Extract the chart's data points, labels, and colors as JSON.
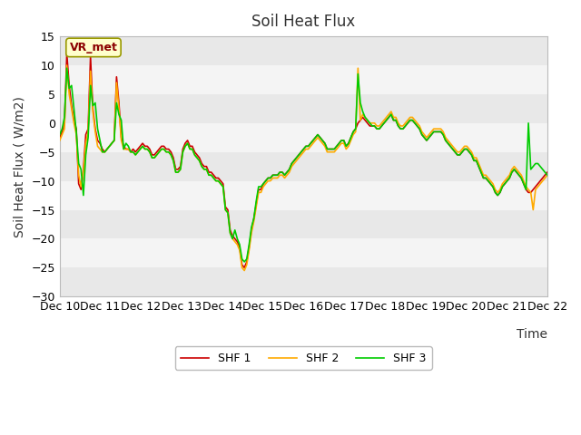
{
  "title": "Soil Heat Flux",
  "xlabel": "Time",
  "ylabel": "Soil Heat Flux ( W/m2)",
  "ylim": [
    -30,
    15
  ],
  "yticks": [
    -30,
    -25,
    -20,
    -15,
    -10,
    -5,
    0,
    5,
    10,
    15
  ],
  "xtick_labels": [
    "Dec 10",
    "Dec 11",
    "Dec 12",
    "Dec 13",
    "Dec 14",
    "Dec 15",
    "Dec 16",
    "Dec 17",
    "Dec 18",
    "Dec 19",
    "Dec 20",
    "Dec 21",
    "Dec 22"
  ],
  "legend_labels": [
    "SHF 1",
    "SHF 2",
    "SHF 3"
  ],
  "line_colors": [
    "#cc0000",
    "#ffaa00",
    "#00cc00"
  ],
  "vr_met_label": "VR_met",
  "title_fontsize": 12,
  "label_fontsize": 10,
  "tick_fontsize": 9,
  "band_colors": [
    "#f0f0f0",
    "#e0e0e0"
  ],
  "shf1": [
    -2.5,
    -1.5,
    0.0,
    12.0,
    6.5,
    3.0,
    0.5,
    -1.0,
    -10.5,
    -11.5,
    -8.0,
    -2.0,
    -1.0,
    11.5,
    2.5,
    -1.0,
    -3.0,
    -3.5,
    -4.5,
    -5.0,
    -4.5,
    -4.0,
    -3.5,
    -3.0,
    8.0,
    3.5,
    -2.5,
    -4.0,
    -4.5,
    -4.5,
    -5.0,
    -4.5,
    -5.0,
    -4.5,
    -4.0,
    -3.5,
    -4.0,
    -4.0,
    -4.5,
    -5.5,
    -5.5,
    -5.0,
    -4.5,
    -4.0,
    -4.0,
    -4.5,
    -4.5,
    -5.0,
    -6.0,
    -8.0,
    -8.0,
    -7.5,
    -4.5,
    -3.5,
    -3.0,
    -4.0,
    -4.0,
    -5.0,
    -5.5,
    -6.0,
    -7.0,
    -7.5,
    -7.5,
    -8.5,
    -8.5,
    -9.0,
    -9.5,
    -9.5,
    -10.0,
    -10.5,
    -14.5,
    -15.0,
    -18.5,
    -19.5,
    -20.0,
    -20.5,
    -21.5,
    -24.5,
    -25.0,
    -24.0,
    -21.5,
    -18.5,
    -16.5,
    -14.0,
    -11.5,
    -11.5,
    -10.5,
    -10.0,
    -9.5,
    -9.5,
    -9.0,
    -9.0,
    -9.0,
    -8.5,
    -8.5,
    -9.0,
    -8.5,
    -8.0,
    -7.0,
    -6.5,
    -6.0,
    -5.5,
    -5.0,
    -4.5,
    -4.0,
    -4.0,
    -3.5,
    -3.0,
    -2.5,
    -2.0,
    -2.5,
    -3.0,
    -3.5,
    -4.5,
    -4.5,
    -4.5,
    -4.5,
    -4.0,
    -3.5,
    -3.0,
    -3.0,
    -4.0,
    -3.5,
    -2.5,
    -1.5,
    -1.0,
    0.0,
    0.5,
    1.0,
    0.5,
    0.0,
    -0.5,
    -0.5,
    -0.5,
    -1.0,
    -1.0,
    -0.5,
    0.0,
    0.5,
    1.0,
    1.5,
    0.5,
    0.5,
    -0.5,
    -1.0,
    -1.0,
    -0.5,
    0.0,
    0.5,
    0.5,
    0.0,
    -0.5,
    -1.0,
    -2.0,
    -2.5,
    -3.0,
    -2.5,
    -2.0,
    -1.5,
    -1.5,
    -1.5,
    -1.5,
    -2.0,
    -3.0,
    -3.5,
    -4.0,
    -4.5,
    -5.0,
    -5.5,
    -5.5,
    -5.0,
    -4.5,
    -4.5,
    -5.0,
    -5.5,
    -6.5,
    -6.5,
    -7.5,
    -8.5,
    -9.5,
    -9.5,
    -10.0,
    -10.5,
    -11.0,
    -12.0,
    -12.5,
    -12.0,
    -11.0,
    -10.5,
    -10.0,
    -9.5,
    -8.5,
    -8.0,
    -8.5,
    -9.0,
    -9.5,
    -10.5,
    -11.5,
    -12.0,
    -12.0,
    -11.5,
    -11.0,
    -10.5,
    -10.0,
    -9.5,
    -9.0,
    -8.5
  ],
  "shf2": [
    -3.0,
    -2.0,
    -1.0,
    10.0,
    5.0,
    2.5,
    0.0,
    -2.0,
    -9.0,
    -11.0,
    -8.5,
    -3.5,
    -1.5,
    9.0,
    2.0,
    -1.5,
    -4.0,
    -4.5,
    -5.0,
    -5.0,
    -4.5,
    -4.0,
    -3.5,
    -3.0,
    7.0,
    2.5,
    -3.0,
    -4.5,
    -4.5,
    -4.5,
    -5.0,
    -5.0,
    -5.5,
    -5.0,
    -4.5,
    -4.0,
    -4.5,
    -4.5,
    -5.0,
    -6.0,
    -6.0,
    -5.5,
    -5.0,
    -4.5,
    -4.5,
    -5.0,
    -5.0,
    -5.5,
    -6.5,
    -8.5,
    -8.5,
    -8.0,
    -5.0,
    -4.0,
    -3.5,
    -4.5,
    -4.5,
    -5.5,
    -6.0,
    -6.5,
    -7.5,
    -8.0,
    -8.0,
    -9.0,
    -9.0,
    -9.5,
    -10.0,
    -10.0,
    -10.5,
    -11.0,
    -15.0,
    -15.5,
    -19.0,
    -20.0,
    -20.5,
    -21.0,
    -22.0,
    -25.0,
    -25.5,
    -24.5,
    -22.0,
    -19.0,
    -17.0,
    -14.5,
    -12.0,
    -12.0,
    -11.0,
    -10.5,
    -10.0,
    -10.0,
    -9.5,
    -9.5,
    -9.5,
    -9.0,
    -9.0,
    -9.5,
    -9.0,
    -8.5,
    -7.5,
    -7.0,
    -6.5,
    -6.0,
    -5.5,
    -5.0,
    -4.5,
    -4.5,
    -4.0,
    -3.5,
    -3.0,
    -2.5,
    -3.0,
    -3.5,
    -4.0,
    -5.0,
    -5.0,
    -5.0,
    -5.0,
    -4.5,
    -4.0,
    -3.5,
    -3.5,
    -4.5,
    -4.0,
    -3.0,
    -2.0,
    -1.5,
    9.5,
    0.5,
    1.5,
    1.0,
    0.5,
    0.0,
    0.0,
    0.0,
    -0.5,
    -0.5,
    0.0,
    0.5,
    1.0,
    1.5,
    2.0,
    1.0,
    1.0,
    0.0,
    -0.5,
    -0.5,
    0.0,
    0.5,
    1.0,
    1.0,
    0.5,
    0.0,
    -0.5,
    -1.5,
    -2.0,
    -2.5,
    -2.0,
    -1.5,
    -1.0,
    -1.0,
    -1.0,
    -1.0,
    -1.5,
    -2.5,
    -3.0,
    -3.5,
    -4.0,
    -4.5,
    -5.0,
    -5.0,
    -4.5,
    -4.0,
    -4.0,
    -4.5,
    -5.0,
    -6.0,
    -6.0,
    -7.0,
    -8.0,
    -9.0,
    -9.0,
    -9.5,
    -10.0,
    -10.5,
    -11.5,
    -12.0,
    -11.5,
    -10.5,
    -10.0,
    -9.5,
    -9.0,
    -8.0,
    -7.5,
    -8.0,
    -8.5,
    -9.0,
    -10.0,
    -11.0,
    -11.5,
    -12.0,
    -15.0,
    -11.5,
    -11.0,
    -10.5,
    -10.0,
    -9.5,
    -9.0
  ],
  "shf3": [
    -2.0,
    -1.0,
    1.0,
    9.5,
    6.0,
    6.5,
    2.5,
    -1.5,
    -7.0,
    -8.0,
    -12.5,
    -5.5,
    -2.5,
    6.5,
    3.0,
    3.5,
    -1.0,
    -3.0,
    -5.0,
    -5.0,
    -4.5,
    -4.0,
    -3.5,
    -3.0,
    3.5,
    1.5,
    0.5,
    -4.5,
    -3.5,
    -4.0,
    -5.0,
    -5.0,
    -5.5,
    -5.0,
    -4.5,
    -4.0,
    -4.5,
    -4.5,
    -5.0,
    -6.0,
    -6.0,
    -5.5,
    -5.0,
    -4.5,
    -4.5,
    -5.0,
    -5.0,
    -5.5,
    -6.5,
    -8.5,
    -8.5,
    -8.0,
    -5.0,
    -4.0,
    -3.5,
    -4.5,
    -4.5,
    -5.5,
    -6.0,
    -6.5,
    -7.5,
    -8.0,
    -8.0,
    -9.0,
    -9.0,
    -9.5,
    -10.0,
    -10.0,
    -10.5,
    -11.0,
    -15.0,
    -15.5,
    -19.0,
    -20.0,
    -18.5,
    -20.0,
    -21.0,
    -23.5,
    -24.0,
    -23.5,
    -21.0,
    -18.0,
    -16.5,
    -13.5,
    -11.0,
    -11.0,
    -10.5,
    -10.0,
    -9.5,
    -9.5,
    -9.0,
    -9.0,
    -9.0,
    -8.5,
    -8.5,
    -9.0,
    -8.5,
    -8.0,
    -7.0,
    -6.5,
    -6.0,
    -5.5,
    -5.0,
    -4.5,
    -4.0,
    -4.0,
    -3.5,
    -3.0,
    -2.5,
    -2.0,
    -2.5,
    -3.0,
    -3.5,
    -4.5,
    -4.5,
    -4.5,
    -4.5,
    -4.0,
    -3.5,
    -3.0,
    -3.0,
    -4.0,
    -3.5,
    -2.5,
    -1.5,
    -1.0,
    8.5,
    3.5,
    2.0,
    1.0,
    0.5,
    0.0,
    -0.5,
    -0.5,
    -1.0,
    -1.0,
    -0.5,
    0.0,
    0.5,
    1.0,
    1.5,
    0.5,
    0.5,
    -0.5,
    -1.0,
    -1.0,
    -0.5,
    0.0,
    0.5,
    0.5,
    0.0,
    -0.5,
    -1.0,
    -2.0,
    -2.5,
    -3.0,
    -2.5,
    -2.0,
    -1.5,
    -1.5,
    -1.5,
    -1.5,
    -2.0,
    -3.0,
    -3.5,
    -4.0,
    -4.5,
    -5.0,
    -5.5,
    -5.5,
    -5.0,
    -4.5,
    -4.5,
    -5.0,
    -5.5,
    -6.5,
    -6.5,
    -7.5,
    -8.5,
    -9.5,
    -9.5,
    -10.0,
    -10.5,
    -11.0,
    -12.0,
    -12.5,
    -12.0,
    -11.0,
    -10.5,
    -10.0,
    -9.5,
    -8.5,
    -8.0,
    -8.5,
    -9.0,
    -9.5,
    -10.5,
    -11.5,
    0.0,
    -8.0,
    -7.5,
    -7.0,
    -7.0,
    -7.5,
    -8.0,
    -8.5,
    -9.0
  ]
}
